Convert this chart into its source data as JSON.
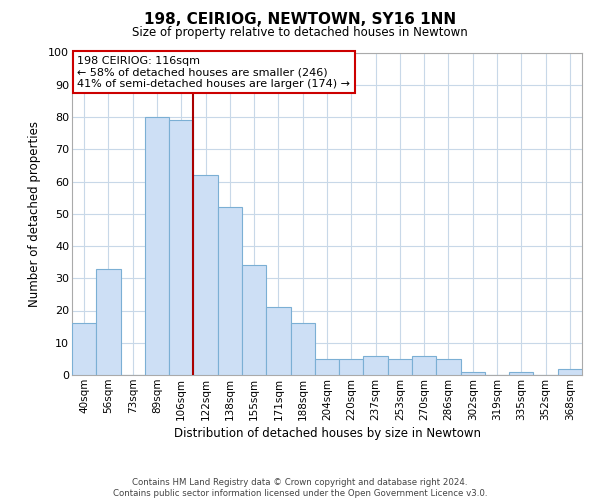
{
  "title": "198, CEIRIOG, NEWTOWN, SY16 1NN",
  "subtitle": "Size of property relative to detached houses in Newtown",
  "xlabel": "Distribution of detached houses by size in Newtown",
  "ylabel": "Number of detached properties",
  "bar_color": "#cddff5",
  "bar_edge_color": "#7bafd4",
  "categories": [
    "40sqm",
    "56sqm",
    "73sqm",
    "89sqm",
    "106sqm",
    "122sqm",
    "138sqm",
    "155sqm",
    "171sqm",
    "188sqm",
    "204sqm",
    "220sqm",
    "237sqm",
    "253sqm",
    "270sqm",
    "286sqm",
    "302sqm",
    "319sqm",
    "335sqm",
    "352sqm",
    "368sqm"
  ],
  "values": [
    16,
    33,
    0,
    80,
    79,
    62,
    52,
    34,
    21,
    16,
    5,
    5,
    6,
    5,
    6,
    5,
    1,
    0,
    1,
    0,
    2
  ],
  "ylim": [
    0,
    100
  ],
  "yticks": [
    0,
    10,
    20,
    30,
    40,
    50,
    60,
    70,
    80,
    90,
    100
  ],
  "vline_x": 4.5,
  "vline_color": "#aa0000",
  "annotation_title": "198 CEIRIOG: 116sqm",
  "annotation_line1": "← 58% of detached houses are smaller (246)",
  "annotation_line2": "41% of semi-detached houses are larger (174) →",
  "annotation_box_color": "#ffffff",
  "annotation_box_edge": "#cc0000",
  "footer_line1": "Contains HM Land Registry data © Crown copyright and database right 2024.",
  "footer_line2": "Contains public sector information licensed under the Open Government Licence v3.0.",
  "background_color": "#ffffff",
  "grid_color": "#c8d8e8"
}
